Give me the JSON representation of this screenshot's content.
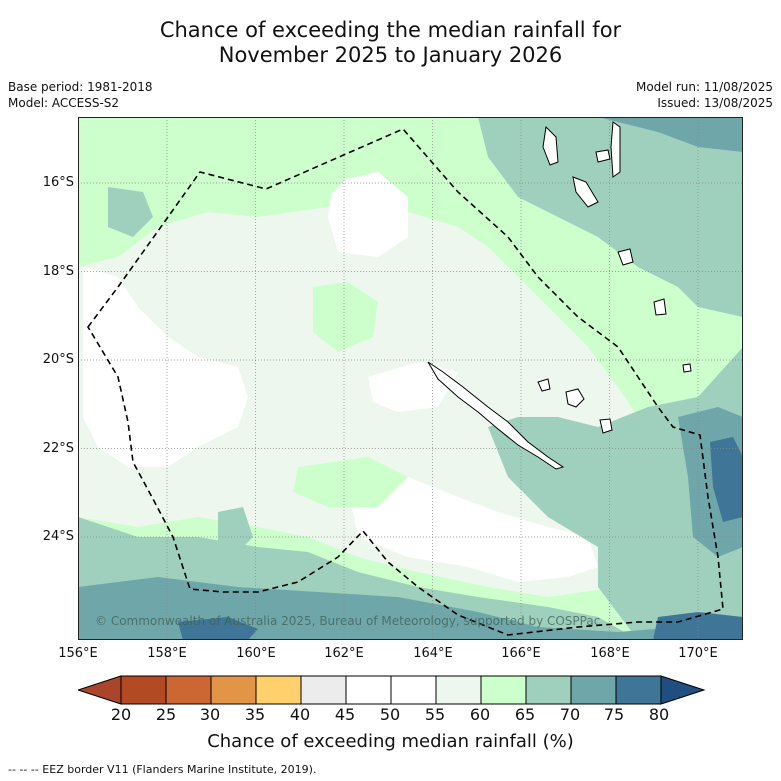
{
  "title_line1": "Chance of exceeding the median rainfall for",
  "title_line2": "November 2025 to January 2026",
  "base_period": "Base period: 1981-2018",
  "model": "Model: ACCESS-S2",
  "model_run": "Model run: 11/08/2025",
  "issued": "Issued: 13/08/2025",
  "lat_labels": [
    "16°S",
    "18°S",
    "20°S",
    "22°S",
    "24°S"
  ],
  "lon_labels": [
    "156°E",
    "158°E",
    "160°E",
    "162°E",
    "164°E",
    "166°E",
    "168°E",
    "170°E"
  ],
  "copyright": "© Commonwealth of Australia 2025, Bureau of Meteorology, supported by COSPPac",
  "colorbar_labels": [
    "20",
    "25",
    "30",
    "35",
    "40",
    "45",
    "50",
    "55",
    "60",
    "65",
    "70",
    "75",
    "80"
  ],
  "colorbar_colors": [
    "#a8452b",
    "#b24a24",
    "#cc6633",
    "#e29447",
    "#ffd06b",
    "#ececec",
    "#ffffff",
    "#ffffff",
    "#eef7ee",
    "#ccffcc",
    "#9fd0bd",
    "#6fa6aa",
    "#3f7596",
    "#1e4f80"
  ],
  "colorbar_title": "Chance of exceeding median rainfall (%)",
  "footer": "--  --  -- EEZ border V11 (Flanders Marine Institute, 2019)."
}
